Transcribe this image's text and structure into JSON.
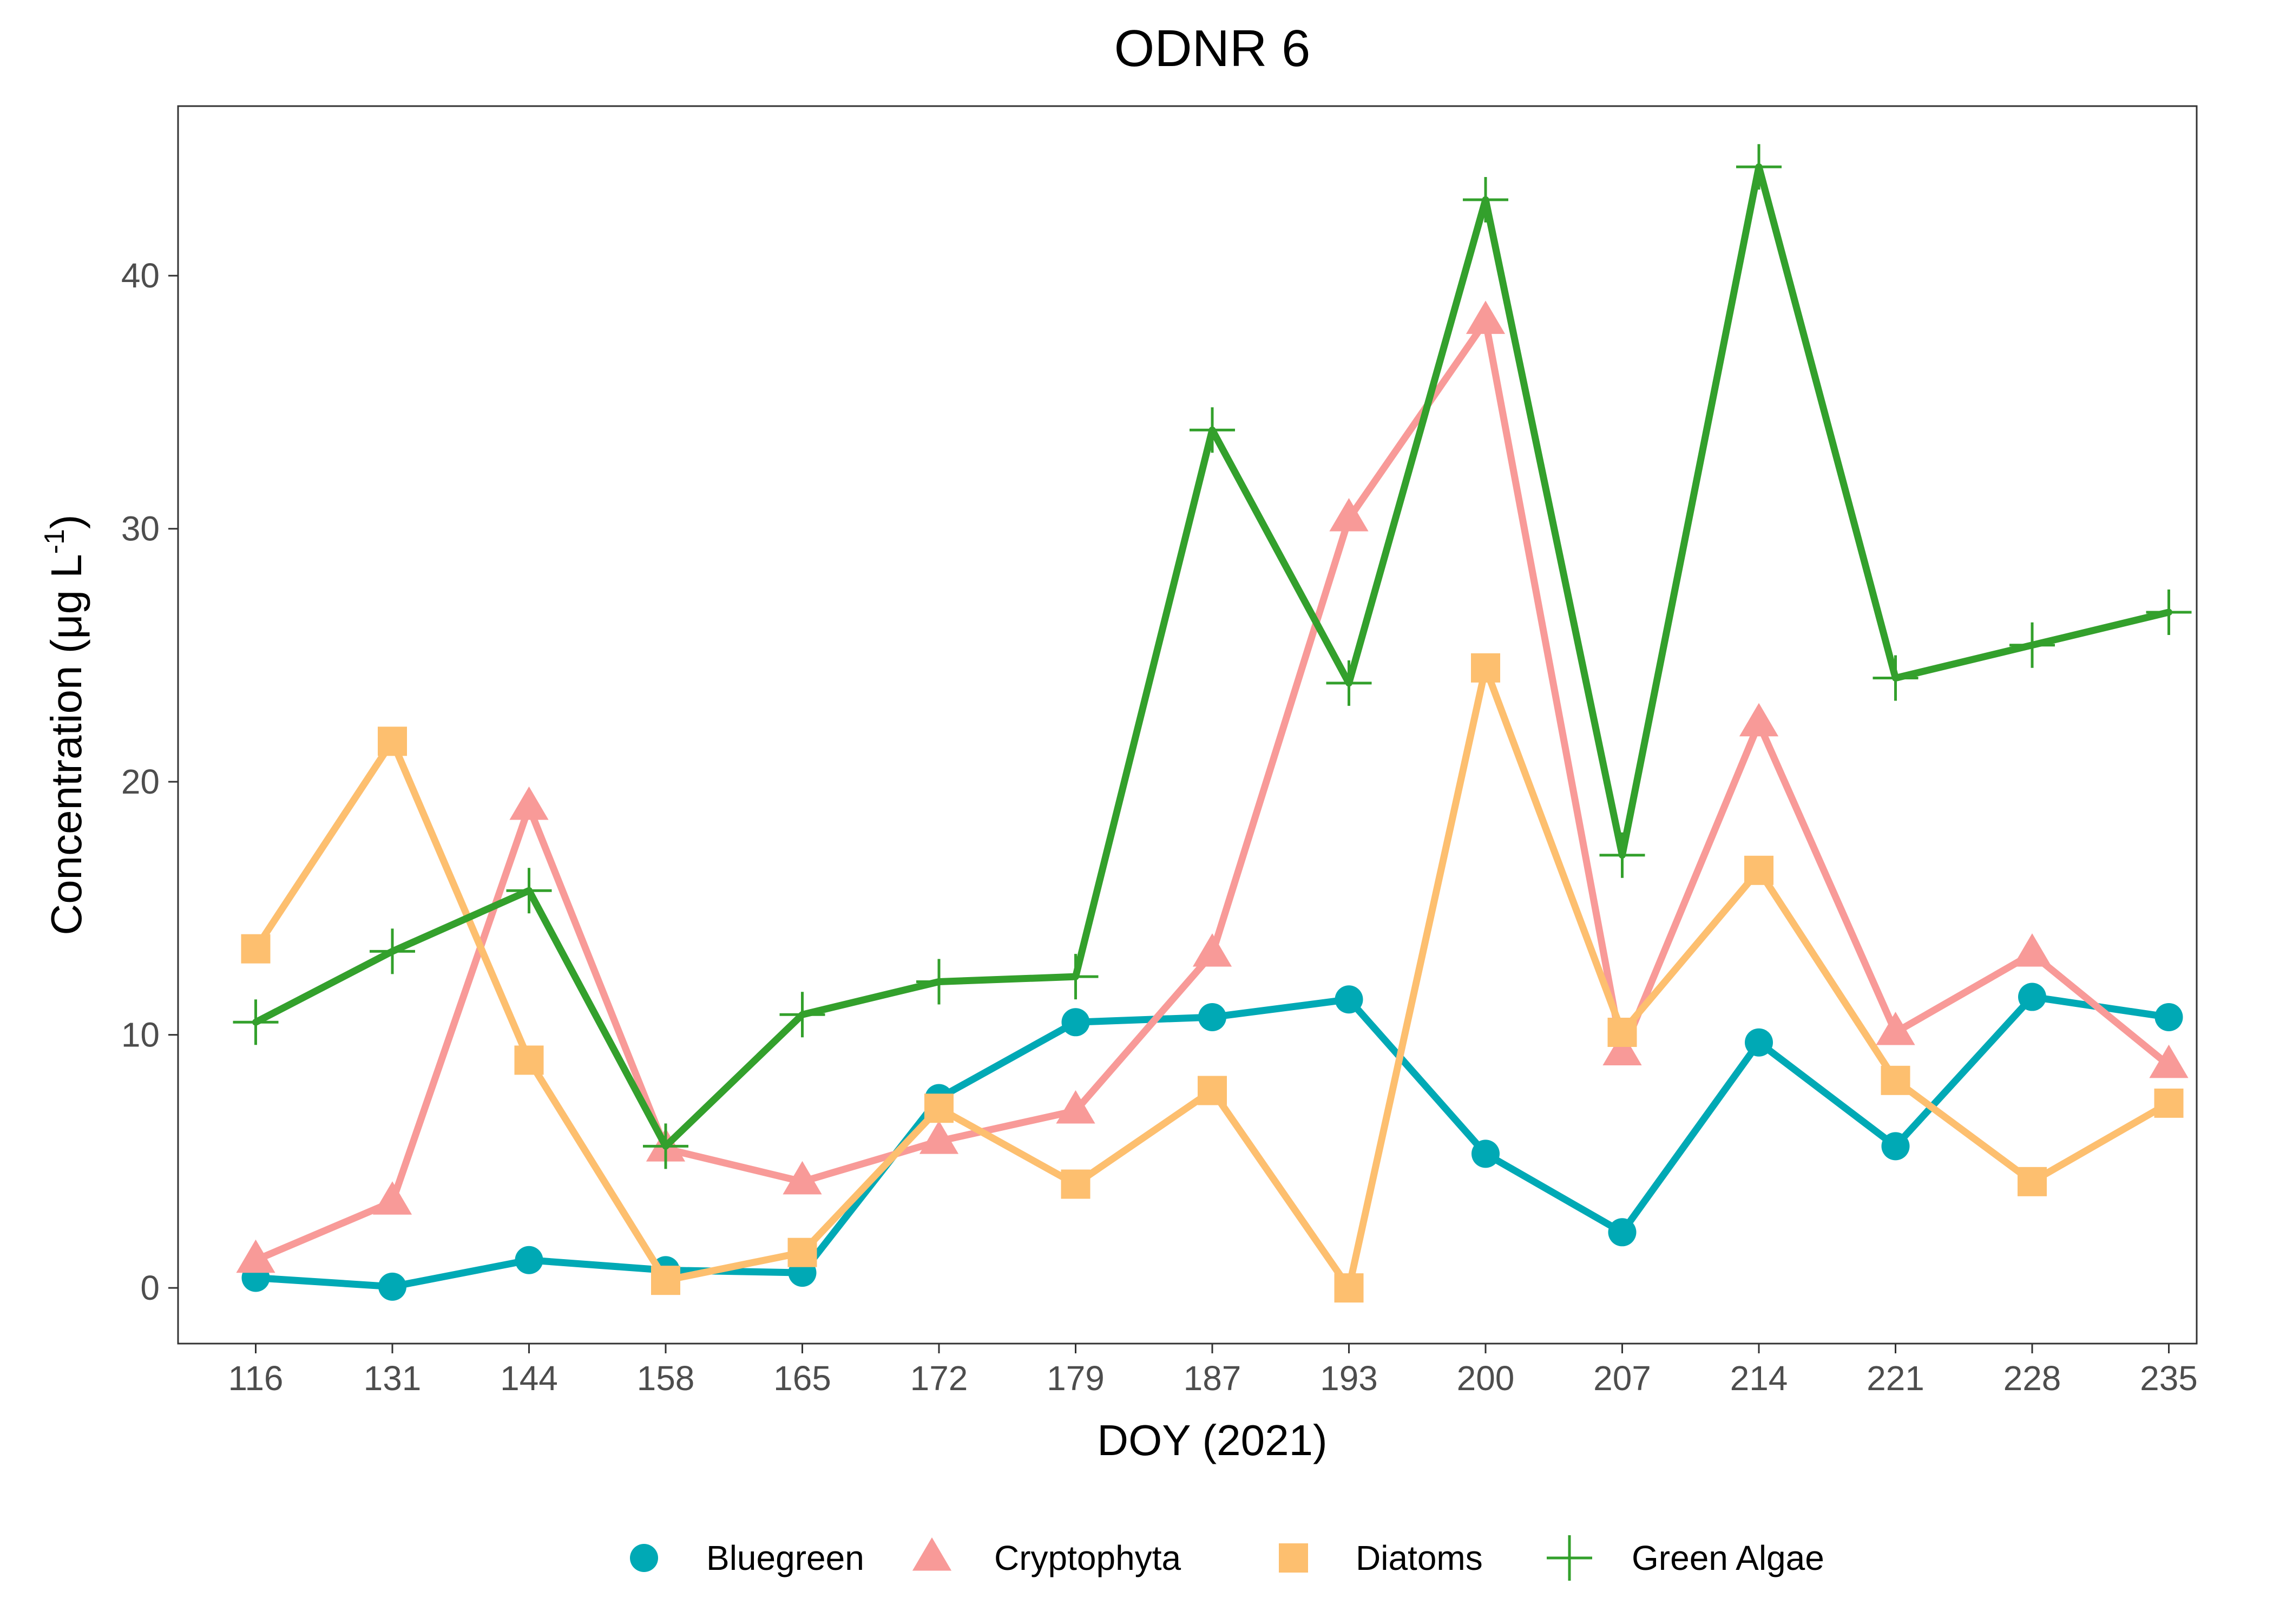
{
  "chart_data": {
    "type": "line",
    "title": "ODNR 6",
    "xlabel": "DOY (2021)",
    "ylabel_main": "Concentration (μg L",
    "ylabel_sup": "-1",
    "ylabel_close": ")",
    "categories": [
      "116",
      "131",
      "144",
      "158",
      "165",
      "172",
      "179",
      "187",
      "193",
      "200",
      "207",
      "214",
      "221",
      "228",
      "235"
    ],
    "yticks": [
      0,
      10,
      20,
      30,
      40
    ],
    "ylim": [
      -2.2,
      46.7
    ],
    "grid": false,
    "legend_position": "bottom",
    "series": [
      {
        "name": "Bluegreen",
        "color": "#00a9b5",
        "marker": "circle",
        "values": [
          0.4,
          0.05,
          1.1,
          0.7,
          0.6,
          7.5,
          10.5,
          10.7,
          11.4,
          5.3,
          2.2,
          9.7,
          5.6,
          11.5,
          10.7
        ]
      },
      {
        "name": "Cryptophyta",
        "color": "#f89a98",
        "marker": "triangle",
        "values": [
          1.1,
          3.4,
          19.0,
          5.5,
          4.2,
          5.8,
          7.0,
          13.2,
          30.4,
          38.2,
          9.3,
          22.3,
          10.1,
          13.2,
          8.8
        ]
      },
      {
        "name": "Diatoms",
        "color": "#fdbf6f",
        "marker": "square",
        "values": [
          13.4,
          21.6,
          9.0,
          0.3,
          1.4,
          7.1,
          4.1,
          7.8,
          0.0,
          24.5,
          10.1,
          16.5,
          8.2,
          4.2,
          7.3
        ]
      },
      {
        "name": "Green Algae",
        "color": "#33a02c",
        "marker": "plus",
        "values": [
          10.5,
          13.3,
          15.7,
          5.6,
          10.8,
          12.1,
          12.3,
          33.9,
          23.9,
          43.0,
          17.1,
          44.3,
          24.1,
          25.4,
          26.7
        ]
      }
    ]
  }
}
